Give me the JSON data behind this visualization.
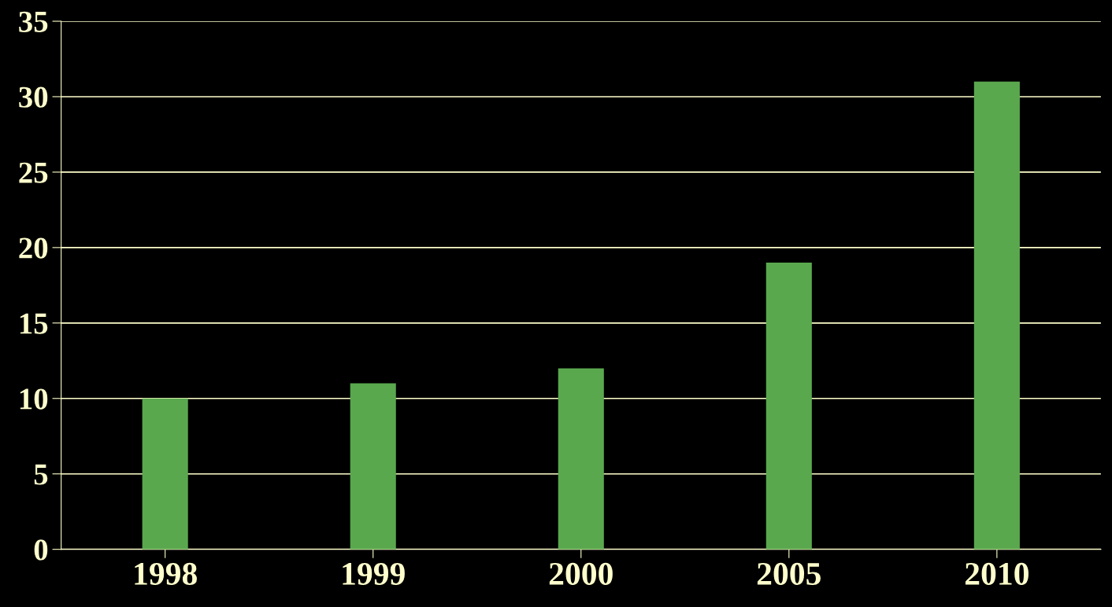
{
  "chart_data": {
    "type": "bar",
    "categories": [
      "1998",
      "1999",
      "2000",
      "2005",
      "2010"
    ],
    "values": [
      10,
      11,
      12,
      19,
      31
    ],
    "color": "#5aa84e",
    "ylim": [
      0,
      35
    ],
    "yticks": [
      0,
      5,
      10,
      15,
      20,
      25,
      30,
      35
    ],
    "grid": "y"
  }
}
